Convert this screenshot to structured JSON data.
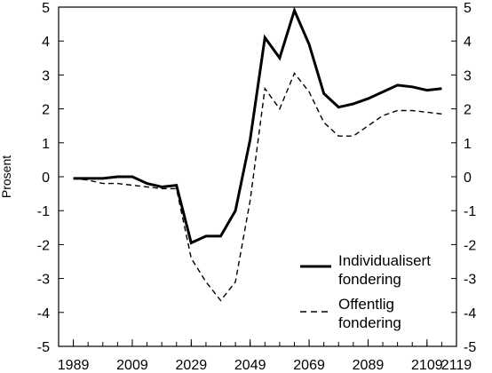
{
  "chart_data": {
    "type": "line",
    "title": "",
    "xlabel": "",
    "ylabel": "Prosent",
    "xlim": [
      1984,
      2119
    ],
    "ylim": [
      -5,
      5
    ],
    "x_ticks": [
      1989,
      2009,
      2029,
      2049,
      2069,
      2089,
      2109,
      2119
    ],
    "y_ticks": [
      -5,
      -4,
      -3,
      -2,
      -1,
      0,
      1,
      2,
      3,
      4,
      5
    ],
    "grid": false,
    "legend_position": "bottom-right",
    "series": [
      {
        "name": "Individualisert fondering",
        "style": "solid",
        "color": "#000000",
        "x": [
          1989,
          1994,
          1999,
          2004,
          2009,
          2014,
          2019,
          2024,
          2029,
          2034,
          2039,
          2044,
          2049,
          2054,
          2059,
          2064,
          2069,
          2074,
          2079,
          2084,
          2089,
          2094,
          2099,
          2104,
          2109,
          2114
        ],
        "y": [
          -0.05,
          -0.05,
          -0.05,
          0.0,
          0.0,
          -0.2,
          -0.3,
          -0.25,
          -1.95,
          -1.75,
          -1.75,
          -1.0,
          1.1,
          4.1,
          3.5,
          4.9,
          3.9,
          2.45,
          2.05,
          2.15,
          2.3,
          2.5,
          2.7,
          2.65,
          2.55,
          2.6
        ]
      },
      {
        "name": "Offentlig fondering",
        "style": "dashed",
        "color": "#000000",
        "x": [
          1989,
          1994,
          1999,
          2004,
          2009,
          2014,
          2019,
          2024,
          2029,
          2034,
          2039,
          2044,
          2049,
          2054,
          2059,
          2064,
          2069,
          2074,
          2079,
          2084,
          2089,
          2094,
          2099,
          2104,
          2109,
          2114
        ],
        "y": [
          -0.05,
          -0.1,
          -0.2,
          -0.2,
          -0.25,
          -0.3,
          -0.35,
          -0.35,
          -2.4,
          -3.1,
          -3.65,
          -3.1,
          -0.7,
          2.6,
          2.0,
          3.05,
          2.5,
          1.6,
          1.2,
          1.2,
          1.5,
          1.8,
          1.95,
          1.95,
          1.9,
          1.85
        ]
      }
    ],
    "legend": {
      "entries": [
        {
          "line1": "Individualisert",
          "line2": "fondering",
          "style": "solid"
        },
        {
          "line1": "Offentlig",
          "line2": "fondering",
          "style": "dashed"
        }
      ]
    }
  }
}
